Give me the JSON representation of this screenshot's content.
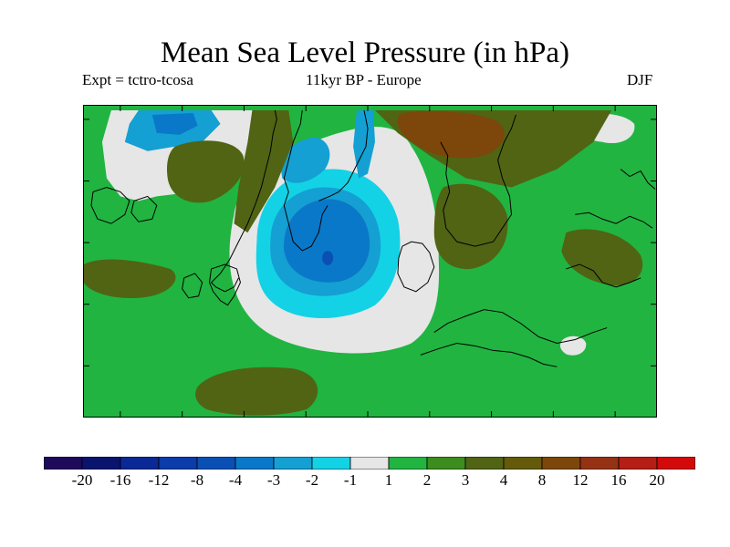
{
  "title": "Mean Sea Level Pressure (in hPa)",
  "subtitle_left": "Expt = tctro-tcosa",
  "subtitle_center": "11kyr BP - Europe",
  "subtitle_right": "DJF",
  "colorbar": {
    "labels": [
      "-20",
      "-16",
      "-12",
      "-8",
      "-4",
      "-3",
      "-2",
      "-1",
      "1",
      "2",
      "3",
      "4",
      "8",
      "12",
      "16",
      "20"
    ],
    "colors": [
      "#1e0a5a",
      "#0a146e",
      "#0a2896",
      "#0a3caa",
      "#0a50b4",
      "#0a78c8",
      "#14a0d2",
      "#14d2e6",
      "#e6e6e6",
      "#21b441",
      "#3c8c1e",
      "#506414",
      "#645a0a",
      "#7d460a",
      "#963214",
      "#b41e14",
      "#d20a0a"
    ]
  },
  "palette": {
    "neutral": "#e6e6e6",
    "green": "#21b441",
    "olive": "#506414",
    "brown": "#7d460a",
    "cyan": "#14d2e6",
    "lightblue": "#14a0d2",
    "blue": "#0a78c8",
    "darkblue": "#0a50b4"
  }
}
